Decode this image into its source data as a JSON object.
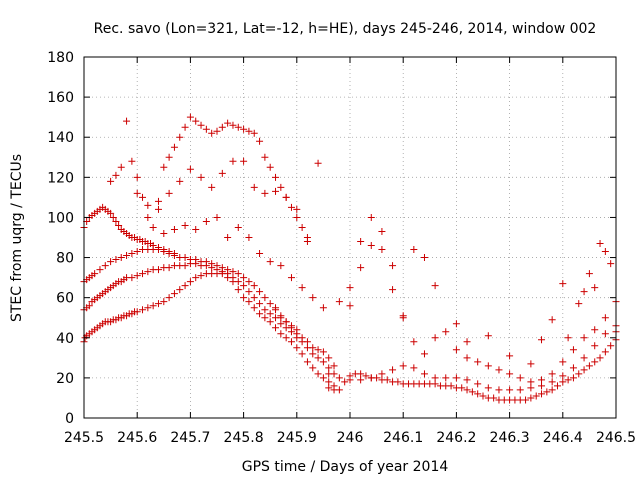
{
  "chart_data": {
    "type": "scatter",
    "title": "Rec. savo (Lon=321, Lat=-12, h=HE), days 245-246, 2014, window 002",
    "xlabel": "GPS time / Days of year 2014",
    "ylabel": "STEC from uqrg / TECUs",
    "xlim": [
      245.5,
      246.5
    ],
    "ylim": [
      0,
      180
    ],
    "xticks": [
      245.5,
      245.6,
      245.7,
      245.8,
      245.9,
      246.0,
      246.1,
      246.2,
      246.3,
      246.4,
      246.5
    ],
    "xtick_labels": [
      "245.5",
      "245.6",
      "245.7",
      "245.8",
      "245.9",
      "246",
      "246.1",
      "246.2",
      "246.3",
      "246.4",
      "246.5"
    ],
    "yticks": [
      0,
      20,
      40,
      60,
      80,
      100,
      120,
      140,
      160,
      180
    ],
    "ytick_labels": [
      "0",
      "20",
      "40",
      "60",
      "80",
      "100",
      "120",
      "140",
      "160",
      "180"
    ],
    "grid": true,
    "legend": "none",
    "marker": "plus",
    "color": "#cc0000",
    "series": [
      {
        "x": [
          245.5,
          245.502,
          245.505,
          245.51,
          245.515,
          245.52,
          245.525,
          245.53,
          245.535,
          245.54,
          245.545,
          245.55,
          245.555,
          245.56,
          245.565,
          245.57,
          245.575,
          245.58,
          245.585,
          245.59,
          245.595,
          245.6,
          245.61,
          245.62,
          245.63,
          245.64,
          245.65,
          245.66,
          245.67,
          245.68,
          245.69,
          245.7,
          245.71,
          245.72,
          245.73,
          245.74,
          245.75,
          245.76,
          245.77,
          245.78,
          245.79,
          245.8,
          245.81,
          245.82,
          245.83,
          245.84,
          245.85,
          245.86,
          245.87,
          245.88,
          245.89,
          245.9,
          245.91,
          245.92,
          245.93,
          245.94,
          245.95,
          245.96,
          245.97
        ],
        "y": [
          38,
          40,
          41,
          42,
          43,
          44,
          45,
          46,
          47,
          48,
          48,
          48,
          49,
          49,
          50,
          50,
          51,
          51,
          52,
          52,
          53,
          53,
          54,
          55,
          56,
          57,
          58,
          60,
          62,
          64,
          66,
          68,
          70,
          71,
          72,
          72,
          72,
          72,
          70,
          68,
          64,
          60,
          58,
          55,
          52,
          50,
          48,
          45,
          42,
          40,
          38,
          35,
          32,
          28,
          25,
          22,
          20,
          18,
          16
        ]
      },
      {
        "x": [
          245.5,
          245.505,
          245.51,
          245.515,
          245.52,
          245.525,
          245.53,
          245.535,
          245.54,
          245.545,
          245.55,
          245.555,
          245.56,
          245.565,
          245.57,
          245.575,
          245.58,
          245.59,
          245.6,
          245.61,
          245.62,
          245.63,
          245.64,
          245.65,
          245.66,
          245.67,
          245.68,
          245.69,
          245.7,
          245.71,
          245.72,
          245.73,
          245.74,
          245.75,
          245.76,
          245.77,
          245.78,
          245.79,
          245.8,
          245.81,
          245.82,
          245.83,
          245.84,
          245.85,
          245.86,
          245.87,
          245.88,
          245.89,
          245.9,
          245.91,
          245.92,
          245.93,
          245.94,
          245.95,
          245.96,
          245.97
        ],
        "y": [
          54,
          55,
          56,
          58,
          59,
          60,
          61,
          62,
          63,
          64,
          65,
          66,
          67,
          68,
          68,
          69,
          70,
          70,
          71,
          72,
          73,
          74,
          74,
          75,
          75,
          76,
          76,
          76,
          77,
          77,
          76,
          76,
          75,
          74,
          73,
          72,
          70,
          68,
          66,
          63,
          60,
          57,
          54,
          52,
          50,
          47,
          45,
          43,
          40,
          38,
          35,
          32,
          30,
          28,
          25,
          22
        ]
      },
      {
        "x": [
          245.5,
          245.505,
          245.51,
          245.515,
          245.52,
          245.53,
          245.54,
          245.55,
          245.56,
          245.57,
          245.58,
          245.59,
          245.6,
          245.61,
          245.62,
          245.63,
          245.64,
          245.65,
          245.66,
          245.67,
          245.68,
          245.69,
          245.7,
          245.71,
          245.72,
          245.73,
          245.74,
          245.75,
          245.76,
          245.77,
          245.78,
          245.79,
          245.8,
          245.81,
          245.82,
          245.83,
          245.84,
          245.85,
          245.86,
          245.87,
          245.88,
          245.89,
          245.9
        ],
        "y": [
          68,
          69,
          70,
          71,
          72,
          74,
          76,
          78,
          79,
          80,
          81,
          82,
          83,
          84,
          84,
          84,
          84,
          83,
          82,
          81,
          80,
          80,
          79,
          79,
          78,
          78,
          77,
          76,
          75,
          74,
          73,
          72,
          70,
          68,
          66,
          63,
          60,
          57,
          54,
          51,
          48,
          46,
          44
        ]
      },
      {
        "x": [
          245.5,
          245.505,
          245.51,
          245.515,
          245.52,
          245.525,
          245.53,
          245.535,
          245.54,
          245.545,
          245.55,
          245.555,
          245.56,
          245.565,
          245.57,
          245.575,
          245.58,
          245.585,
          245.59,
          245.595,
          245.6,
          245.605,
          245.61,
          245.615,
          245.62,
          245.625,
          245.63,
          245.64,
          245.65,
          245.66,
          245.67
        ],
        "y": [
          95,
          98,
          100,
          101,
          102,
          103,
          104,
          105,
          104,
          103,
          102,
          100,
          98,
          96,
          94,
          93,
          92,
          91,
          90,
          90,
          89,
          89,
          88,
          88,
          87,
          87,
          86,
          85,
          84,
          83,
          82
        ]
      },
      {
        "x": [
          245.55,
          245.56,
          245.57,
          245.58,
          245.59,
          245.6,
          245.61,
          245.62,
          245.63,
          245.64,
          245.65,
          245.66,
          245.67,
          245.68,
          245.69,
          245.7,
          245.71,
          245.72,
          245.73,
          245.74,
          245.75,
          245.76,
          245.77,
          245.78,
          245.79,
          245.8,
          245.81,
          245.82,
          245.83,
          245.84,
          245.85,
          245.86,
          245.87,
          245.88,
          245.89,
          245.9,
          245.91,
          245.92
        ],
        "y": [
          118,
          121,
          125,
          148,
          128,
          120,
          110,
          100,
          95,
          104,
          125,
          130,
          135,
          140,
          145,
          150,
          148,
          146,
          144,
          142,
          143,
          145,
          147,
          146,
          145,
          144,
          143,
          142,
          138,
          130,
          125,
          120,
          115,
          110,
          105,
          100,
          95,
          90
        ]
      },
      {
        "x": [
          245.6,
          245.62,
          245.64,
          245.66,
          245.68,
          245.7,
          245.72,
          245.74,
          245.76,
          245.78,
          245.8,
          245.82,
          245.84,
          245.86,
          245.88,
          245.9,
          245.92,
          245.94
        ],
        "y": [
          112,
          106,
          108,
          112,
          118,
          124,
          120,
          115,
          122,
          128,
          128,
          115,
          112,
          113,
          110,
          104,
          88,
          127
        ]
      },
      {
        "x": [
          245.65,
          245.67,
          245.69,
          245.71,
          245.73,
          245.75,
          245.77,
          245.79,
          245.81,
          245.83,
          245.85,
          245.87,
          245.89,
          245.91,
          245.93,
          245.95
        ],
        "y": [
          92,
          94,
          96,
          94,
          98,
          100,
          90,
          95,
          90,
          82,
          78,
          76,
          70,
          65,
          60,
          55
        ]
      },
      {
        "x": [
          245.96,
          245.97,
          245.98,
          245.99,
          246.0,
          246.01,
          246.02,
          246.03,
          246.04,
          246.05,
          246.06,
          246.07,
          246.08,
          246.09,
          246.1,
          246.11,
          246.12,
          246.13,
          246.14,
          246.15,
          246.16,
          246.17,
          246.18,
          246.19,
          246.2,
          246.21,
          246.22,
          246.23,
          246.24,
          246.25,
          246.26,
          246.27,
          246.28,
          246.29,
          246.3,
          246.31,
          246.32,
          246.33,
          246.34,
          246.35,
          246.36,
          246.37,
          246.38,
          246.39,
          246.4,
          246.41,
          246.42,
          246.43,
          246.44,
          246.45,
          246.46,
          246.47,
          246.48,
          246.49,
          246.5
        ],
        "y": [
          15,
          14,
          14,
          18,
          21,
          22,
          22,
          21,
          20,
          20,
          19,
          19,
          18,
          18,
          17,
          17,
          17,
          17,
          17,
          17,
          17,
          16,
          16,
          16,
          15,
          15,
          14,
          13,
          12,
          11,
          10,
          10,
          9,
          9,
          9,
          9,
          9,
          9,
          10,
          11,
          12,
          13,
          14,
          16,
          18,
          19,
          20,
          22,
          24,
          26,
          28,
          30,
          33,
          36,
          39
        ]
      },
      {
        "x": [
          245.96,
          245.98,
          246.0,
          246.02,
          246.04,
          246.06,
          246.08,
          246.1,
          246.12,
          246.14,
          246.16,
          246.18,
          246.2,
          246.22,
          246.24,
          246.26,
          246.28,
          246.3,
          246.32,
          246.34,
          246.36,
          246.38,
          246.4,
          246.42,
          246.44,
          246.46,
          246.48,
          246.5
        ],
        "y": [
          22,
          20,
          19,
          19,
          20,
          22,
          24,
          26,
          25,
          22,
          20,
          20,
          20,
          19,
          17,
          15,
          14,
          14,
          14,
          15,
          16,
          18,
          21,
          25,
          30,
          36,
          42,
          46
        ]
      },
      {
        "x": [
          245.98,
          246.0,
          246.02,
          246.04,
          246.06,
          246.08,
          246.1,
          246.12,
          246.14,
          246.16,
          246.18,
          246.2,
          246.22,
          246.24,
          246.26,
          246.28,
          246.3,
          246.32,
          246.34,
          246.36,
          246.38,
          246.4,
          246.42,
          246.44,
          246.46,
          246.48,
          246.5
        ],
        "y": [
          58,
          56,
          75,
          86,
          84,
          76,
          50,
          38,
          32,
          40,
          43,
          34,
          30,
          28,
          26,
          24,
          22,
          20,
          18,
          19,
          22,
          28,
          34,
          40,
          44,
          50,
          58
        ]
      },
      {
        "x": [
          246.0,
          246.02,
          246.04,
          246.06,
          246.08,
          246.1,
          246.12,
          246.14,
          246.16,
          246.2,
          246.22,
          246.26,
          246.3,
          246.34,
          246.36,
          246.38,
          246.4,
          246.41,
          246.43,
          246.44,
          246.45,
          246.46,
          246.47,
          246.48,
          246.49,
          246.5
        ],
        "y": [
          65,
          88,
          100,
          93,
          64,
          51,
          84,
          80,
          66,
          47,
          38,
          41,
          31,
          27,
          39,
          49,
          67,
          40,
          57,
          63,
          72,
          65,
          87,
          83,
          77,
          43
        ]
      },
      {
        "x": [
          245.86,
          245.87,
          245.88,
          245.89,
          245.9,
          245.91,
          245.92,
          245.93,
          245.94,
          245.95,
          245.96,
          245.97
        ],
        "y": [
          55,
          50,
          48,
          45,
          42,
          40,
          38,
          35,
          34,
          33,
          30,
          26
        ]
      }
    ]
  }
}
